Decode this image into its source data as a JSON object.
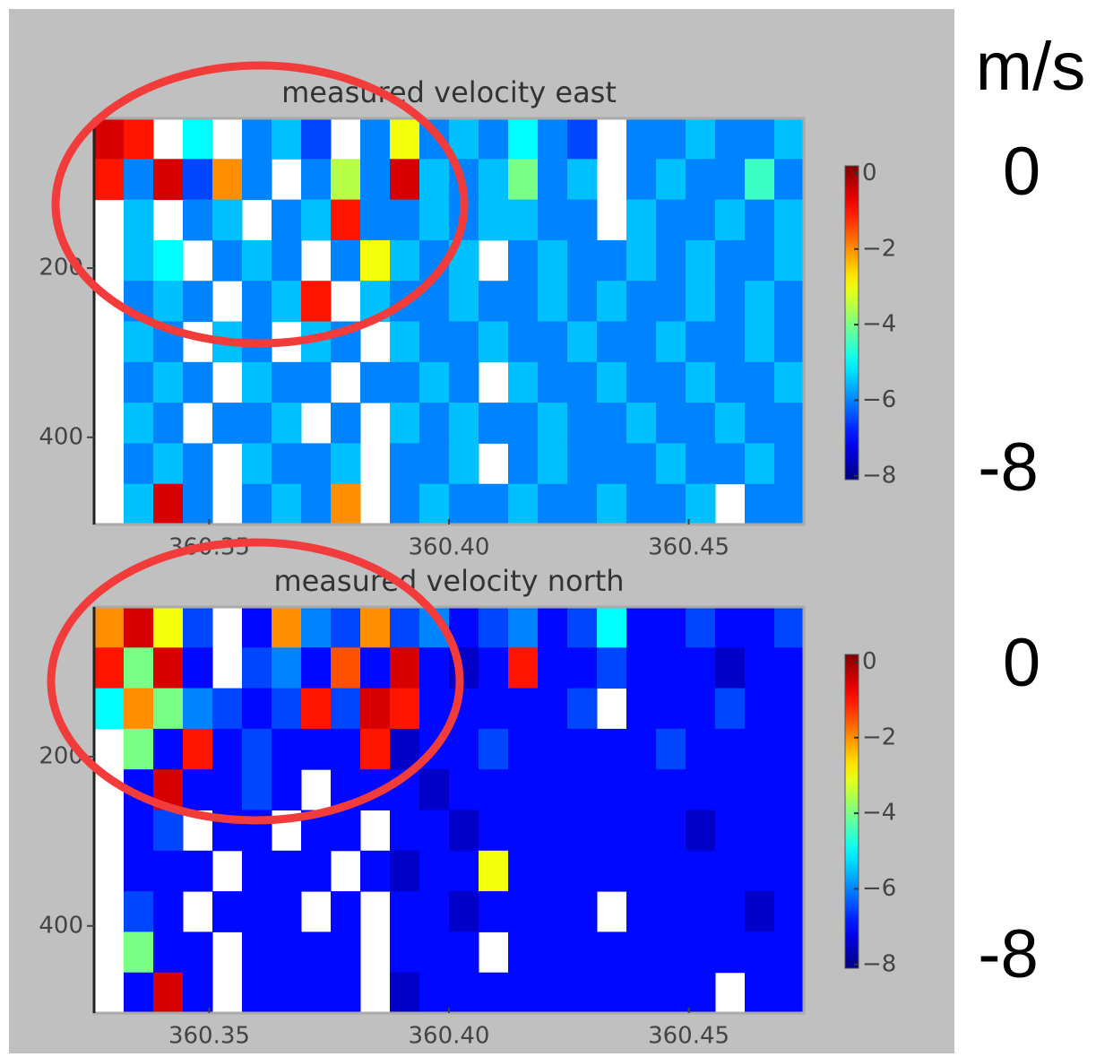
{
  "chart_data": [
    {
      "type": "heatmap",
      "title": "measured velocity east",
      "colormap": "jet",
      "clim": [
        -8.1,
        0.2
      ],
      "xlim": [
        360.326,
        360.474
      ],
      "ylim": [
        503,
        23
      ],
      "xticks": [
        360.35,
        {
          "value": 360.4,
          "label": "360.40"
        },
        360.45
      ],
      "yticks": [
        200,
        400
      ],
      "cbar_ticks": [
        {
          "value": 0,
          "label": "0"
        },
        {
          "value": -2,
          "label": "−2"
        },
        {
          "value": -4,
          "label": "−4"
        },
        {
          "value": -6,
          "label": "−6"
        },
        {
          "value": -8,
          "label": "−8"
        }
      ],
      "z": [
        [
          -0.5,
          -1,
          null,
          -5,
          null,
          -6,
          -5.5,
          -6.5,
          null,
          -6,
          -3,
          -6,
          -5.5,
          -6,
          -5,
          -6,
          -6.5,
          null,
          -6,
          -6,
          -5.5,
          -6,
          -6,
          -5.5
        ],
        [
          -1,
          -6,
          -0.5,
          -6.5,
          -2,
          -6,
          null,
          -6,
          -3.5,
          -6,
          -0.5,
          -5.5,
          -6,
          -5.5,
          -4,
          -6,
          -5.5,
          null,
          -6,
          -5.5,
          -6,
          -6,
          -4.5,
          -6
        ],
        [
          null,
          -5.5,
          null,
          -6,
          -5.5,
          null,
          -6,
          -5.5,
          -1,
          -6,
          -6,
          -5.5,
          -6,
          -5.5,
          -5.5,
          -6,
          -6,
          null,
          -5.5,
          -6,
          -6,
          -5.5,
          -6,
          -5.5
        ],
        [
          null,
          -5.5,
          -5,
          null,
          -6,
          -5.5,
          -6,
          null,
          -6,
          -3,
          -5.5,
          -6,
          -5.5,
          null,
          -6,
          -5.5,
          -6,
          -6,
          -5.5,
          -6,
          -5.5,
          -6,
          -6,
          -5.5
        ],
        [
          null,
          -6,
          -5.5,
          -6,
          null,
          -6,
          -5.5,
          -1,
          null,
          -5.5,
          -6,
          -6,
          -5.5,
          -6,
          -6,
          -5.5,
          -6,
          -5.5,
          -6,
          -6,
          -5.5,
          -6,
          -5.5,
          -6
        ],
        [
          null,
          -5.5,
          -6,
          null,
          -5.5,
          -6,
          null,
          -5.5,
          -6,
          null,
          -5.5,
          -6,
          -6,
          -5.5,
          -6,
          -6,
          -5.5,
          -6,
          -6,
          -5.5,
          -6,
          -6,
          -5.5,
          -6
        ],
        [
          null,
          -6,
          -5.5,
          -6,
          null,
          -5.5,
          -6,
          -6,
          null,
          -6,
          -6,
          -5.5,
          -6,
          null,
          -5.5,
          -6,
          -6,
          -5.5,
          -6,
          -6,
          -5.5,
          -6,
          -6,
          -5.5
        ],
        [
          null,
          -5.5,
          -6,
          null,
          -6,
          -6,
          -5.5,
          null,
          -6,
          null,
          -5.5,
          -6,
          -5.5,
          -6,
          -6,
          -5.5,
          -6,
          -6,
          -5.5,
          -6,
          -6,
          -5.5,
          -6,
          -6
        ],
        [
          null,
          -6,
          -5.5,
          -6,
          null,
          -5.5,
          -6,
          -6,
          -5.5,
          null,
          -6,
          -6,
          -5.5,
          null,
          -6,
          -5.5,
          -6,
          -6,
          -6,
          -5.5,
          -6,
          -6,
          -5.5,
          -6
        ],
        [
          null,
          -5.5,
          -0.5,
          -6,
          null,
          -6,
          -5.5,
          -6,
          -2,
          null,
          -6,
          -5.5,
          -6,
          -6,
          -5.5,
          -6,
          -6,
          -5.5,
          -6,
          -6,
          -5.5,
          null,
          -6,
          -6
        ]
      ]
    },
    {
      "type": "heatmap",
      "title": "measured velocity north",
      "colormap": "jet",
      "clim": [
        -8.1,
        0.2
      ],
      "xlim": [
        360.326,
        360.474
      ],
      "ylim": [
        503,
        23
      ],
      "xticks": [
        360.35,
        {
          "value": 360.4,
          "label": "360.40"
        },
        360.45
      ],
      "yticks": [
        200,
        400
      ],
      "cbar_ticks": [
        {
          "value": 0,
          "label": "0"
        },
        {
          "value": -2,
          "label": "−2"
        },
        {
          "value": -4,
          "label": "−4"
        },
        {
          "value": -6,
          "label": "−6"
        },
        {
          "value": -8,
          "label": "−8"
        }
      ],
      "z": [
        [
          -2,
          -0.5,
          -3,
          -6.5,
          null,
          -7,
          -2,
          -6,
          -6.5,
          -2,
          -6.5,
          -6,
          -7,
          -6.5,
          -6,
          -7,
          -6.5,
          -5,
          -7,
          -7,
          -6.5,
          -7,
          -7,
          -6.5
        ],
        [
          -1,
          -4,
          -0.5,
          -7,
          null,
          -6.5,
          -6,
          -7,
          -1.5,
          -7,
          -0.5,
          -7,
          -7.5,
          -7,
          -1,
          -7,
          -7,
          -6.5,
          -7,
          -7,
          -7,
          -7.5,
          -7,
          -7
        ],
        [
          -5,
          -2,
          -4,
          -6,
          -6.5,
          -7,
          -6.5,
          -1,
          -6.5,
          -0.5,
          -1,
          -7,
          -7,
          -7,
          -7,
          -7,
          -6.5,
          null,
          -7,
          -7,
          -7,
          -6.5,
          -7,
          -7
        ],
        [
          null,
          -4,
          -7,
          -1,
          -7,
          -6.5,
          -7,
          -7,
          -7,
          -1,
          -7.5,
          -7,
          -7,
          -6.5,
          -7,
          -7,
          -7,
          -7,
          -7,
          -6.5,
          -7,
          -7,
          -7,
          -7
        ],
        [
          null,
          -7,
          -0.5,
          -7,
          -7,
          -6.5,
          -7,
          null,
          -7,
          -7,
          -7,
          -7.5,
          -7,
          -7,
          -7,
          -7,
          -7,
          -7,
          -7,
          -7,
          -7,
          -7,
          -7,
          -7
        ],
        [
          null,
          -7,
          -6.5,
          null,
          -7,
          -7,
          null,
          -7,
          -7,
          null,
          -7,
          -7,
          -7.5,
          -7,
          -7,
          -7,
          -7,
          -7,
          -7,
          -7,
          -7.5,
          -7,
          -7,
          -7
        ],
        [
          null,
          -7,
          -7,
          -7,
          null,
          -7,
          -7,
          -7,
          null,
          -7,
          -7.5,
          -7,
          -7,
          -3,
          -7,
          -7,
          -7,
          -7,
          -7,
          -7,
          -7,
          -7,
          -7,
          -7
        ],
        [
          null,
          -6.5,
          -7,
          null,
          -7,
          -7,
          -7,
          null,
          -7,
          null,
          -7,
          -7,
          -7.5,
          -7,
          -7,
          -7,
          -7,
          null,
          -7,
          -7,
          -7,
          -7,
          -7.5,
          -7
        ],
        [
          null,
          -4,
          -7,
          -7,
          null,
          -7,
          -7,
          -7,
          -7,
          null,
          -7,
          -7,
          -7,
          null,
          -7,
          -7,
          -7,
          -7,
          -7,
          -7,
          -7,
          -7,
          -7,
          -7
        ],
        [
          null,
          -7,
          -0.5,
          -7,
          null,
          -7,
          -7,
          -7,
          -7,
          null,
          -7.5,
          -7,
          -7,
          -7,
          -7,
          -7,
          -7,
          -7,
          -7,
          -7,
          -7,
          null,
          -7,
          -7
        ]
      ]
    }
  ],
  "annotations": {
    "unit": "m/s",
    "upper": [
      0,
      -8
    ],
    "lower": [
      0,
      -8
    ]
  }
}
